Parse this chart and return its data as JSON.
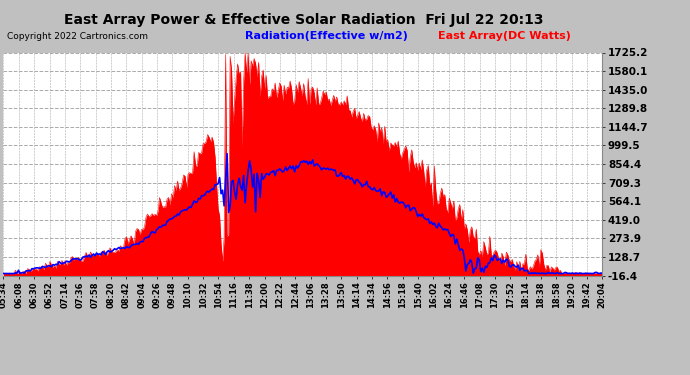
{
  "title": "East Array Power & Effective Solar Radiation  Fri Jul 22 20:13",
  "copyright": "Copyright 2022 Cartronics.com",
  "legend_radiation": "Radiation(Effective w/m2)",
  "legend_array": "East Array(DC Watts)",
  "ymin": -16.4,
  "ymax": 1725.2,
  "ytick_vals": [
    -16.4,
    128.7,
    273.9,
    419.0,
    564.1,
    709.3,
    854.4,
    999.5,
    1144.7,
    1289.8,
    1435.0,
    1580.1,
    1725.2
  ],
  "bg_color": "#c0c0c0",
  "plot_bg_color": "#ffffff",
  "radiation_color": "#0000ff",
  "array_color": "#ff0000",
  "title_color": "#000000",
  "grid_color": "#ffffff",
  "grid_linestyle": "--",
  "xtick_labels": [
    "05:34",
    "06:08",
    "06:30",
    "06:52",
    "07:14",
    "07:36",
    "07:58",
    "08:20",
    "08:42",
    "09:04",
    "09:26",
    "09:48",
    "10:10",
    "10:32",
    "10:54",
    "11:16",
    "11:38",
    "12:00",
    "12:22",
    "12:44",
    "13:06",
    "13:28",
    "13:50",
    "14:14",
    "14:34",
    "14:56",
    "15:18",
    "15:40",
    "16:02",
    "16:24",
    "16:46",
    "17:08",
    "17:30",
    "17:52",
    "18:14",
    "18:38",
    "18:58",
    "19:20",
    "19:42",
    "20:04"
  ]
}
